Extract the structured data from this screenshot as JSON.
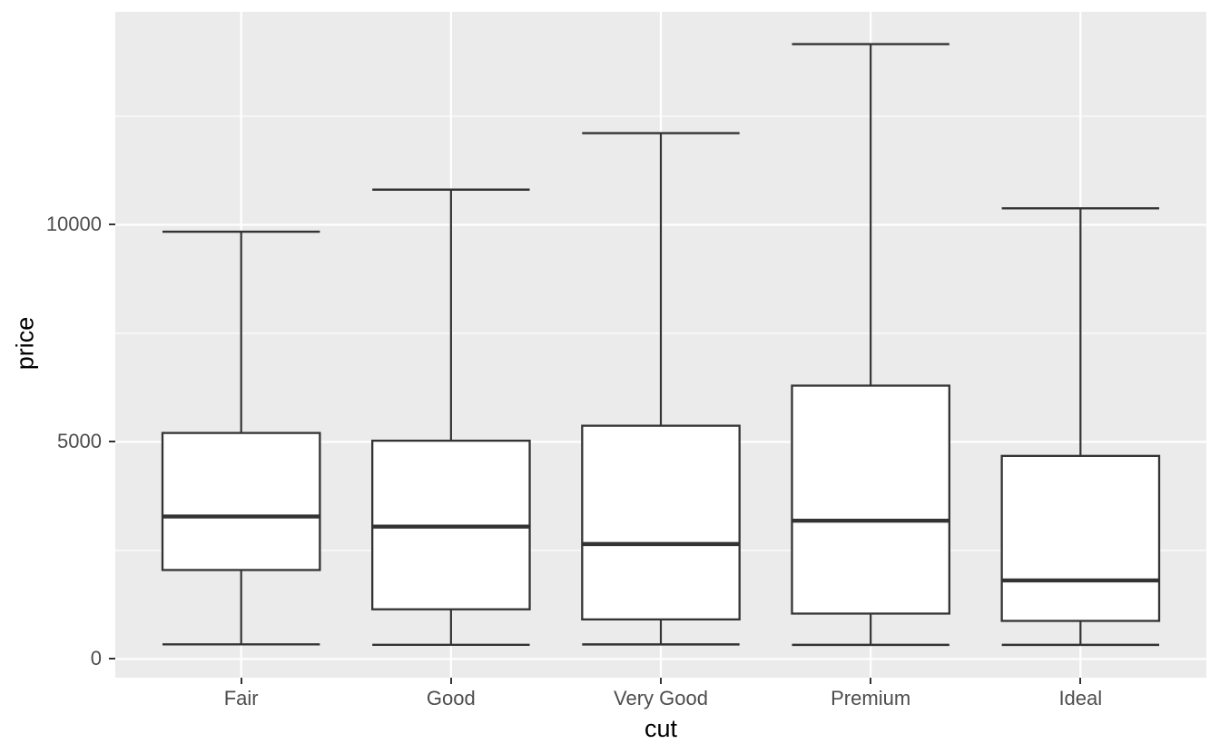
{
  "chart_data": {
    "type": "boxplot",
    "title": "",
    "xlabel": "cut",
    "ylabel": "price",
    "categories": [
      "Fair",
      "Good",
      "Very Good",
      "Premium",
      "Ideal"
    ],
    "series": [
      {
        "name": "price",
        "boxes": [
          {
            "category": "Fair",
            "lower_whisker": 337,
            "q1": 2050,
            "median": 3282,
            "q3": 5206,
            "upper_whisker": 9840
          },
          {
            "category": "Good",
            "lower_whisker": 327,
            "q1": 1145,
            "median": 3050,
            "q3": 5028,
            "upper_whisker": 10810
          },
          {
            "category": "Very Good",
            "lower_whisker": 336,
            "q1": 912,
            "median": 2648,
            "q3": 5373,
            "upper_whisker": 12110
          },
          {
            "category": "Premium",
            "lower_whisker": 326,
            "q1": 1046,
            "median": 3185,
            "q3": 6296,
            "upper_whisker": 14160
          },
          {
            "category": "Ideal",
            "lower_whisker": 326,
            "q1": 878,
            "median": 1810,
            "q3": 4678,
            "upper_whisker": 10380
          }
        ]
      }
    ],
    "y_axis": {
      "ticks": [
        0,
        5000,
        10000
      ],
      "tick_labels": [
        "0",
        "5000",
        "10000"
      ],
      "minor_gridlines": [
        2500,
        7500,
        12500
      ],
      "range": [
        -430,
        14905
      ]
    },
    "x_axis": {
      "range": [
        0.4,
        5.6
      ],
      "box_width_units": 0.75,
      "cap_width_units": 0.375
    },
    "grid": {
      "major": true,
      "minor": true
    },
    "legend": "none",
    "style": {
      "panel_bg": "#EBEBEB",
      "gridline_color": "#FFFFFF",
      "box_stroke": "#333333",
      "box_fill": "#FFFFFF",
      "median_color": "#333333",
      "tick_mark_color": "#333333",
      "tick_label_color": "#4D4D4D",
      "axis_title_color": "#000000"
    }
  }
}
